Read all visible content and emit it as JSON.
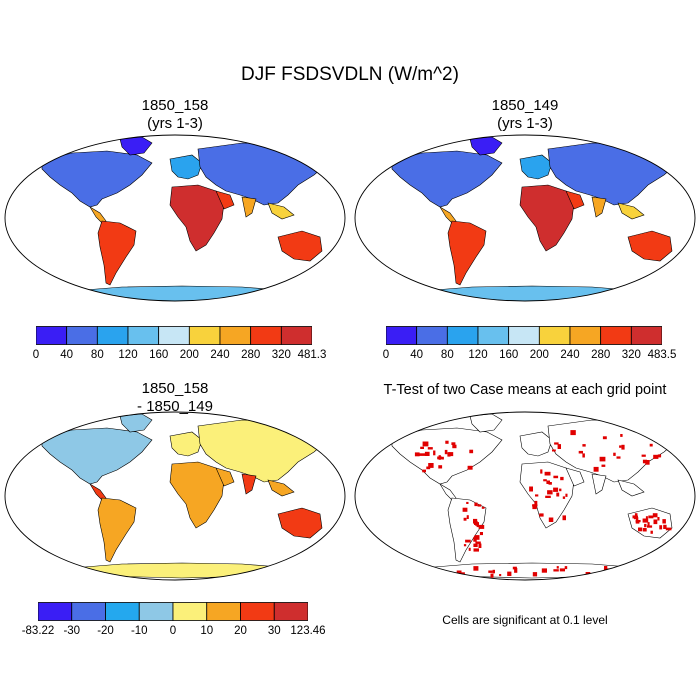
{
  "title": "DJF FSDSVDLN (W/m^2)",
  "panels": [
    {
      "line1": "1850_158",
      "line2": "(yrs 1-3)"
    },
    {
      "line1": "1850_149",
      "line2": "(yrs 1-3)"
    },
    {
      "line1": "1850_158",
      "line2": "- 1850_149"
    },
    {
      "line1": "T-Test of two Case means at each grid point",
      "line2": ""
    }
  ],
  "note": "Cells are significant at 0.1 level",
  "chart_data": [
    {
      "type": "heatmap",
      "title": "1850_158 (yrs 1-3)",
      "colorbar": {
        "ticks": [
          "0",
          "40",
          "80",
          "120",
          "160",
          "200",
          "240",
          "280",
          "320",
          "481.3"
        ],
        "colors": [
          "#3a1ef5",
          "#4a6ee6",
          "#2aa3ee",
          "#68c0ee",
          "#c7e6f5",
          "#f8d23c",
          "#f6a623",
          "#f23a14",
          "#cf2e2e"
        ]
      }
    },
    {
      "type": "heatmap",
      "title": "1850_149 (yrs 1-3)",
      "colorbar": {
        "ticks": [
          "0",
          "40",
          "80",
          "120",
          "160",
          "200",
          "240",
          "280",
          "320",
          "483.5"
        ],
        "colors": [
          "#3a1ef5",
          "#4a6ee6",
          "#2aa3ee",
          "#68c0ee",
          "#c7e6f5",
          "#f8d23c",
          "#f6a623",
          "#f23a14",
          "#cf2e2e"
        ]
      }
    },
    {
      "type": "heatmap",
      "title": "1850_158 - 1850_149",
      "colorbar": {
        "ticks": [
          "-83.22",
          "-30",
          "-20",
          "-10",
          "0",
          "10",
          "20",
          "30",
          "123.46"
        ],
        "colors": [
          "#3a1ef5",
          "#4a6ee6",
          "#24a8ee",
          "#8ec8e6",
          "#fbf07a",
          "#f6a623",
          "#f23a14",
          "#cf2e2e"
        ]
      }
    },
    {
      "type": "heatmap",
      "title": "T-Test of two Case means at each grid point",
      "significance_color": "#e00000"
    }
  ]
}
